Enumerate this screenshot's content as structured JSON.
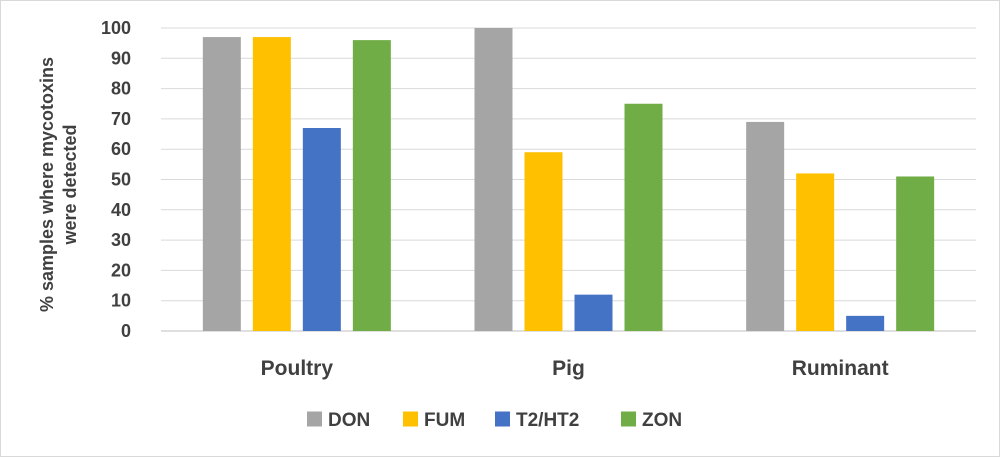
{
  "chart_data": {
    "type": "bar",
    "categories": [
      "Poultry",
      "Pig",
      "Ruminant"
    ],
    "series": [
      {
        "name": "DON",
        "color": "#a5a5a5",
        "values": [
          97,
          100,
          69
        ]
      },
      {
        "name": "FUM",
        "color": "#ffc000",
        "values": [
          97,
          59,
          52
        ]
      },
      {
        "name": "T2/HT2",
        "color": "#4472c4",
        "values": [
          67,
          12,
          5
        ]
      },
      {
        "name": "ZON",
        "color": "#70ad47",
        "values": [
          96,
          75,
          51
        ]
      }
    ],
    "ylabel_lines": [
      "% samples where mycotoxins",
      "were detected"
    ],
    "ylim": [
      0,
      100
    ],
    "yticks": [
      0,
      10,
      20,
      30,
      40,
      50,
      60,
      70,
      80,
      90,
      100
    ],
    "grid": true,
    "legend_position": "bottom",
    "gridline_color": "#d9d9d9",
    "text_color": "#404040"
  }
}
